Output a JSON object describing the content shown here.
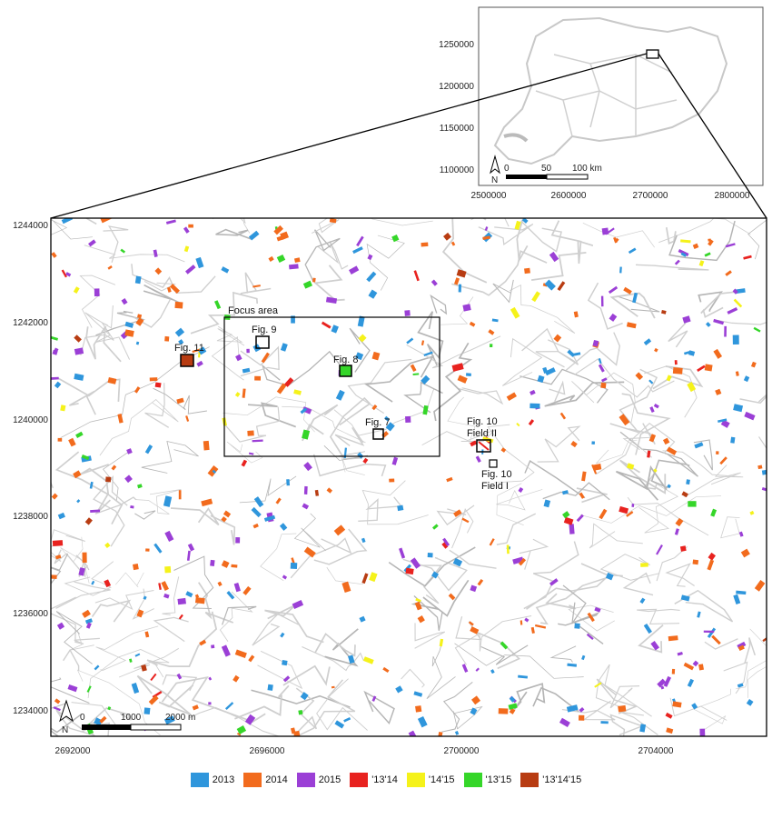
{
  "inset": {
    "y_ticks": [
      "1250000",
      "1200000",
      "1150000",
      "1100000"
    ],
    "x_ticks": [
      "2500000",
      "2600000",
      "2700000",
      "2800000"
    ],
    "north": "N",
    "scale": [
      "0",
      "50",
      "100 km"
    ]
  },
  "main": {
    "y_ticks": [
      "1244000",
      "1242000",
      "1240000",
      "1238000",
      "1236000",
      "1234000"
    ],
    "x_ticks": [
      "2692000",
      "2696000",
      "2700000",
      "2704000"
    ],
    "north": "N",
    "scale": [
      "0",
      "1000",
      "2000 m"
    ],
    "focus_area": "Focus area",
    "annotations": [
      {
        "line1": "Fig. 9",
        "line2": ""
      },
      {
        "line1": "Fig. 11",
        "line2": ""
      },
      {
        "line1": "Fig. 8",
        "line2": ""
      },
      {
        "line1": "Fig. 7",
        "line2": ""
      },
      {
        "line1": "Fig. 10",
        "line2": "Field II"
      },
      {
        "line1": "Fig. 10",
        "line2": "Field I"
      }
    ]
  },
  "legend": [
    {
      "label": "2013",
      "color": "#2f96dc"
    },
    {
      "label": "2014",
      "color": "#f26b1d"
    },
    {
      "label": "2015",
      "color": "#9b3fd6"
    },
    {
      "label": "'13'14",
      "color": "#e8221f"
    },
    {
      "label": "'14'15",
      "color": "#f5f21a"
    },
    {
      "label": "'13'15",
      "color": "#35d629"
    },
    {
      "label": "'13'14'15",
      "color": "#b83c12"
    }
  ]
}
